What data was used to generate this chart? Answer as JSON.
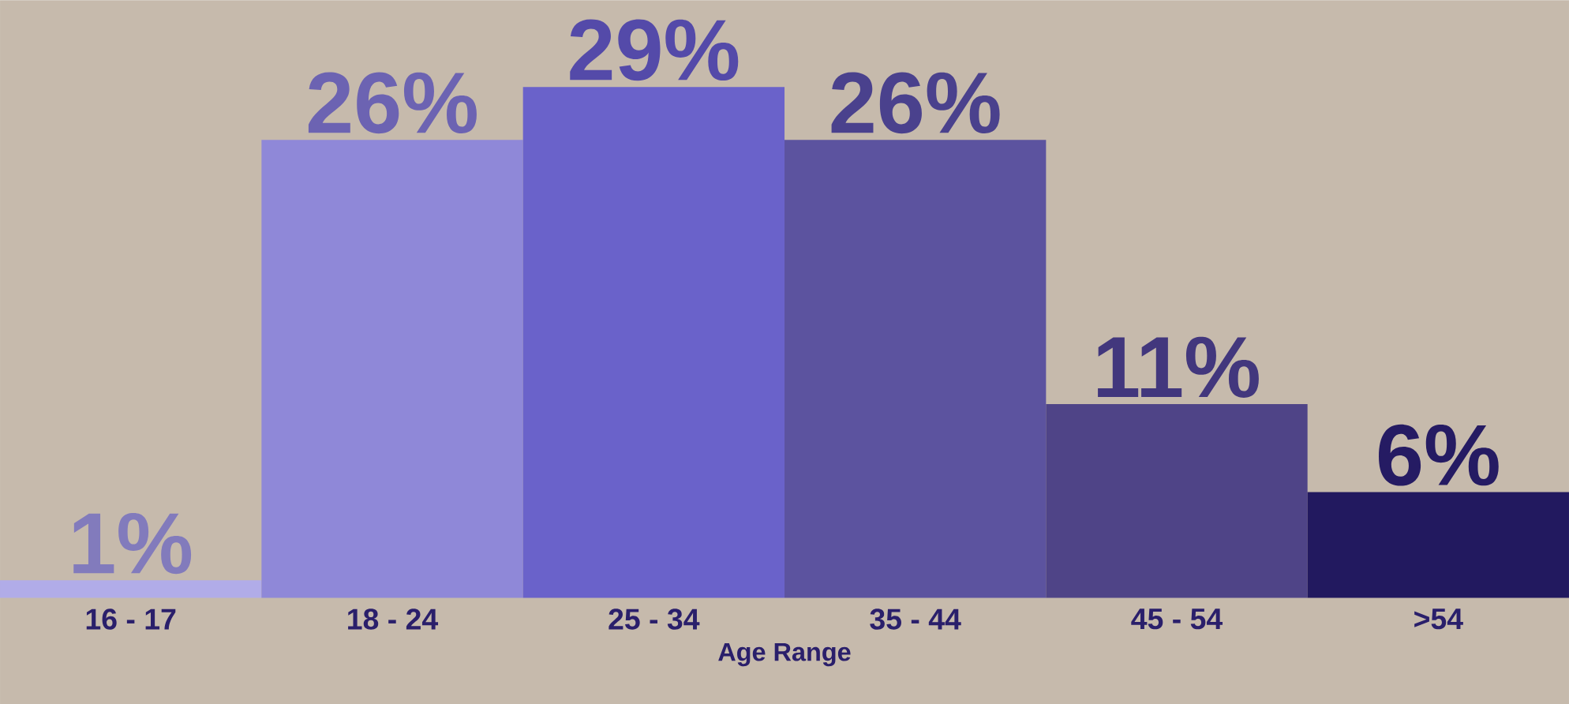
{
  "chart_data": {
    "type": "bar",
    "xlabel": "Age Range",
    "categories": [
      "16 - 17",
      "18 - 24",
      "25 - 34",
      "35 - 44",
      "45 - 54",
      ">54"
    ],
    "values": [
      1,
      26,
      29,
      26,
      11,
      6
    ],
    "value_labels": [
      "1%",
      "26%",
      "29%",
      "26%",
      "11%",
      "6%"
    ],
    "colors": [
      "#b1ace8",
      "#8f88d8",
      "#6a62ca",
      "#5c539f",
      "#4f4487",
      "#22195f"
    ],
    "grid": false
  }
}
